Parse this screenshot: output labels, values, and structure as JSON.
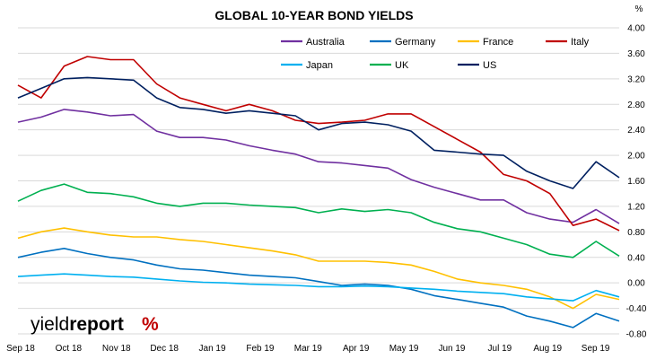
{
  "chart_data": {
    "type": "line",
    "title": "GLOBAL 10-YEAR BOND YIELDS",
    "ylabel": "%",
    "xlabel": "",
    "ylim": [
      -0.8,
      4.0
    ],
    "yticks": [
      "4.00",
      "3.60",
      "3.20",
      "2.80",
      "2.40",
      "2.00",
      "1.60",
      "1.20",
      "0.80",
      "0.40",
      "0.00",
      "-0.40",
      "-0.80"
    ],
    "xticks": [
      "Sep 18",
      "Oct 18",
      "Nov 18",
      "Dec 18",
      "Jan 19",
      "Feb 19",
      "Mar 19",
      "Apr 19",
      "May 19",
      "Jun 19",
      "Jul 19",
      "Aug 19",
      "Sep 19"
    ],
    "grid": "horizontal",
    "legend_position": "top-right",
    "x": [
      "Sep 18",
      "Sep 18",
      "Oct 18",
      "Oct 18",
      "Nov 18",
      "Nov 18",
      "Dec 18",
      "Dec 18",
      "Jan 19",
      "Jan 19",
      "Feb 19",
      "Feb 19",
      "Mar 19",
      "Mar 19",
      "Apr 19",
      "Apr 19",
      "May 19",
      "May 19",
      "Jun 19",
      "Jun 19",
      "Jul 19",
      "Jul 19",
      "Aug 19",
      "Aug 19",
      "Sep 19",
      "Sep 19",
      "Sep 19"
    ],
    "series": [
      {
        "name": "Australia",
        "color": "#7030a0",
        "values": [
          2.52,
          2.6,
          2.72,
          2.68,
          2.62,
          2.64,
          2.38,
          2.28,
          2.28,
          2.24,
          2.15,
          2.08,
          2.02,
          1.9,
          1.88,
          1.84,
          1.8,
          1.62,
          1.5,
          1.4,
          1.3,
          1.3,
          1.1,
          1.0,
          0.95,
          1.15,
          0.93
        ]
      },
      {
        "name": "Germany",
        "color": "#0070c0",
        "values": [
          0.4,
          0.48,
          0.54,
          0.46,
          0.4,
          0.36,
          0.28,
          0.22,
          0.2,
          0.16,
          0.12,
          0.1,
          0.08,
          0.02,
          -0.04,
          -0.02,
          -0.04,
          -0.1,
          -0.2,
          -0.26,
          -0.32,
          -0.38,
          -0.52,
          -0.6,
          -0.7,
          -0.48,
          -0.6
        ]
      },
      {
        "name": "France",
        "color": "#ffc000",
        "values": [
          0.7,
          0.8,
          0.86,
          0.8,
          0.75,
          0.72,
          0.72,
          0.68,
          0.65,
          0.6,
          0.55,
          0.5,
          0.44,
          0.34,
          0.34,
          0.34,
          0.32,
          0.28,
          0.18,
          0.06,
          0.0,
          -0.04,
          -0.1,
          -0.22,
          -0.4,
          -0.18,
          -0.26
        ]
      },
      {
        "name": "Italy",
        "color": "#c00000",
        "values": [
          3.1,
          2.9,
          3.4,
          3.55,
          3.5,
          3.5,
          3.12,
          2.9,
          2.8,
          2.7,
          2.8,
          2.7,
          2.55,
          2.5,
          2.52,
          2.55,
          2.65,
          2.65,
          2.45,
          2.25,
          2.05,
          1.7,
          1.6,
          1.4,
          0.9,
          1.0,
          0.82
        ]
      },
      {
        "name": "Japan",
        "color": "#00b0f0",
        "values": [
          0.1,
          0.12,
          0.14,
          0.12,
          0.1,
          0.09,
          0.06,
          0.03,
          0.01,
          0.0,
          -0.02,
          -0.03,
          -0.04,
          -0.06,
          -0.06,
          -0.05,
          -0.06,
          -0.08,
          -0.1,
          -0.13,
          -0.15,
          -0.17,
          -0.22,
          -0.25,
          -0.28,
          -0.12,
          -0.22
        ]
      },
      {
        "name": "UK",
        "color": "#00b050",
        "values": [
          1.28,
          1.45,
          1.55,
          1.42,
          1.4,
          1.35,
          1.25,
          1.2,
          1.25,
          1.25,
          1.22,
          1.2,
          1.18,
          1.1,
          1.16,
          1.12,
          1.15,
          1.1,
          0.95,
          0.85,
          0.8,
          0.7,
          0.6,
          0.45,
          0.4,
          0.65,
          0.42
        ]
      },
      {
        "name": "US",
        "color": "#002060",
        "values": [
          2.9,
          3.05,
          3.2,
          3.22,
          3.2,
          3.18,
          2.9,
          2.75,
          2.72,
          2.66,
          2.7,
          2.66,
          2.62,
          2.4,
          2.5,
          2.52,
          2.48,
          2.38,
          2.08,
          2.05,
          2.02,
          2.0,
          1.75,
          1.6,
          1.48,
          1.9,
          1.65
        ]
      }
    ]
  },
  "logo": {
    "text": "yieldreport %"
  }
}
